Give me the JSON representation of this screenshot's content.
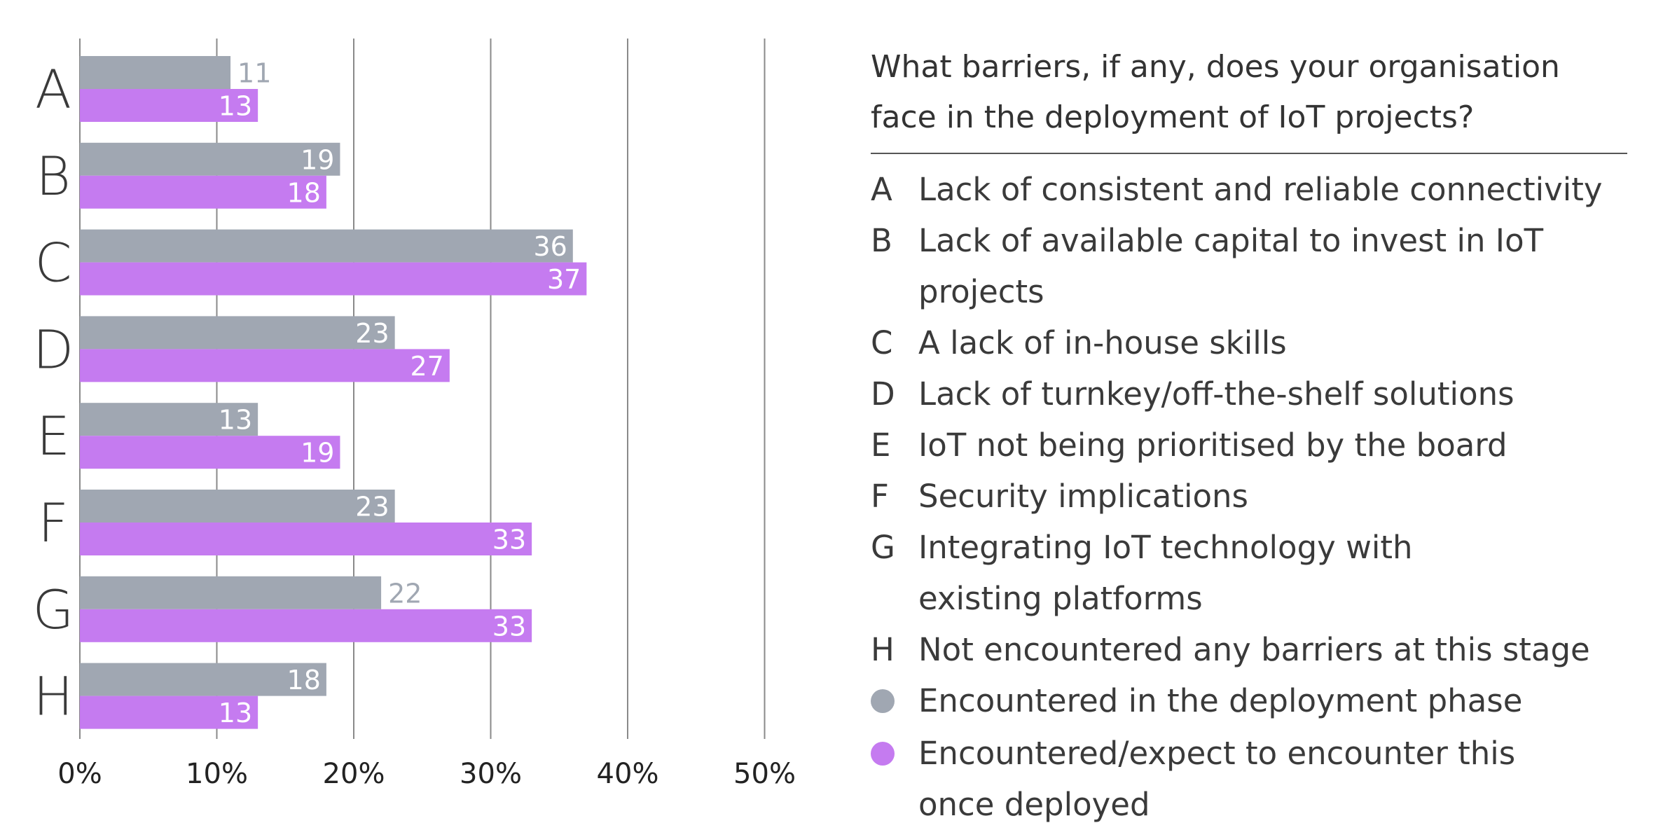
{
  "chart_data": {
    "type": "bar",
    "orientation": "horizontal",
    "categories": [
      "A",
      "B",
      "C",
      "D",
      "E",
      "F",
      "G",
      "H"
    ],
    "series": [
      {
        "name": "Encountered in the deployment phase",
        "color": "#a0a7b2",
        "values": [
          11,
          19,
          36,
          23,
          13,
          23,
          22,
          18
        ]
      },
      {
        "name": "Encountered/expect to encounter this once deployed",
        "color": "#c57bf0",
        "values": [
          13,
          18,
          37,
          27,
          19,
          33,
          33,
          13
        ]
      }
    ],
    "xlim": [
      0,
      50
    ],
    "xticks": [
      "0%",
      "10%",
      "20%",
      "30%",
      "40%",
      "50%"
    ],
    "grid": true,
    "title": "What barriers, if any, does your organisation face in the deployment of IoT projects?"
  },
  "legend": {
    "title": "What barriers, if any, does your organisation face in the deployment of IoT projects?",
    "items": [
      {
        "key": "A",
        "text": "Lack of consistent and reliable connectivity"
      },
      {
        "key": "B",
        "text": "Lack of available capital to invest in IoT projects"
      },
      {
        "key": "C",
        "text": "A lack of in-house skills"
      },
      {
        "key": "D",
        "text": "Lack of turnkey/off-the-shelf solutions"
      },
      {
        "key": "E",
        "text": "IoT not being prioritised by the board"
      },
      {
        "key": "F",
        "text": "Security implications"
      },
      {
        "key": "G",
        "text": "Integrating IoT technology with existing platforms"
      },
      {
        "key": "H",
        "text": "Not encountered any barriers at this stage"
      }
    ],
    "series": [
      {
        "text": "Encountered in the deployment phase",
        "color": "#a0a7b2"
      },
      {
        "text": "Encountered/expect to encounter this once deployed",
        "color": "#c57bf0"
      }
    ]
  },
  "colors": {
    "label_on_bar": "#ffffff",
    "label_outside_bar": "#a0a7b2"
  }
}
